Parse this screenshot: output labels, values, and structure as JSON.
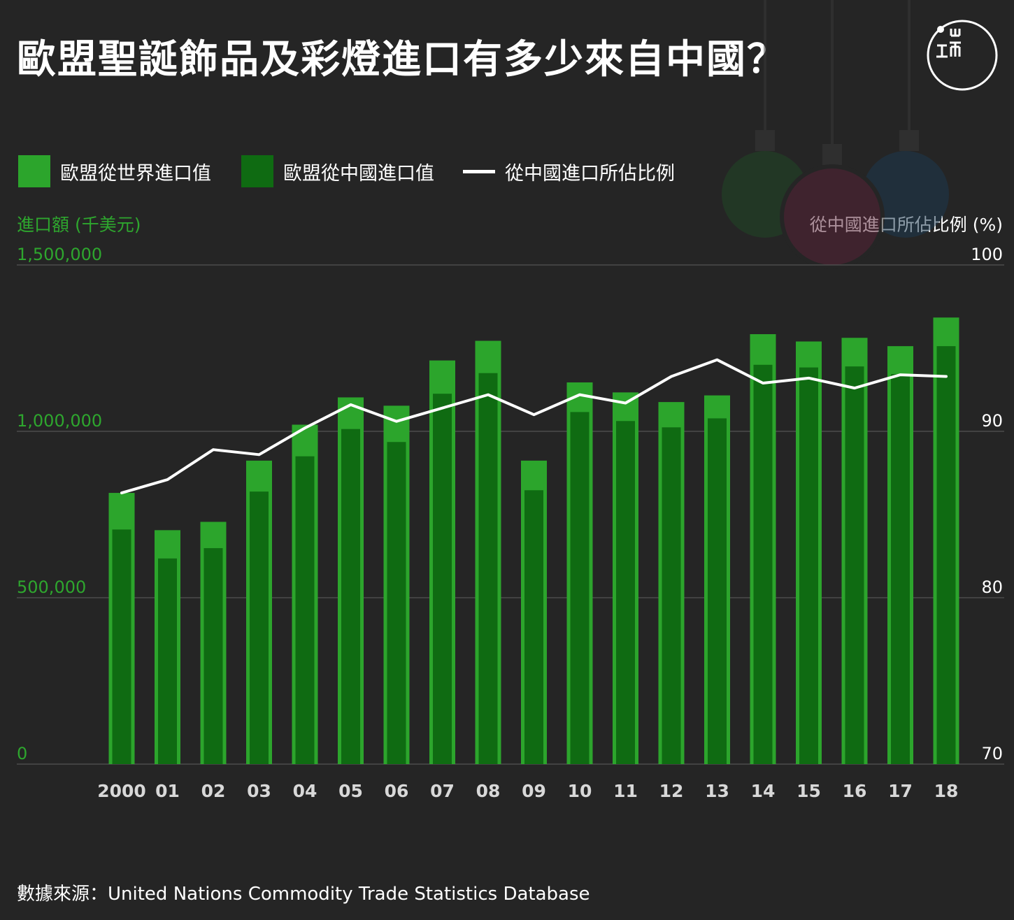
{
  "title": "歐盟聖誕飾品及彩燈進口有多少來自中國？",
  "logo": {
    "icon": "initium-logo-icon"
  },
  "legend": [
    {
      "label": "歐盟從世界進口值",
      "color": "#2ca52c",
      "kind": "bar"
    },
    {
      "label": "歐盟從中國進口值",
      "color": "#0f6b12",
      "kind": "bar"
    },
    {
      "label": "從中國進口所佔比例",
      "color": "#ffffff",
      "kind": "line"
    }
  ],
  "source": "數據來源：United Nations Commodity Trade Statistics Database",
  "chart_data": {
    "type": "bar",
    "ylabel": "進口額 (千美元)",
    "y2label": "從中國進口所佔比例 (%)",
    "ylim": [
      0,
      1500000
    ],
    "y2lim": [
      70,
      100
    ],
    "yticks": [
      0,
      500000,
      1000000,
      1500000
    ],
    "ytick_labels": [
      "0",
      "500,000",
      "1,000,000",
      "1,500,000"
    ],
    "y2ticks": [
      70,
      80,
      90,
      100
    ],
    "y2tick_labels": [
      "70",
      "80",
      "90",
      "100"
    ],
    "grid": true,
    "legend_position": "top-left",
    "colors": {
      "world": "#2ca52c",
      "china": "#0f6b12",
      "share": "#ffffff",
      "left_axis_text": "#2ea62e",
      "right_axis_text": "#ffffff",
      "x_axis_text": "#d8d8d8"
    },
    "categories": [
      "2000",
      "01",
      "02",
      "03",
      "04",
      "05",
      "06",
      "07",
      "08",
      "09",
      "10",
      "11",
      "12",
      "13",
      "14",
      "15",
      "16",
      "17",
      "18"
    ],
    "series": [
      {
        "name": "歐盟從世界進口值",
        "type": "bar",
        "values": [
          815000,
          703000,
          728000,
          912000,
          1020000,
          1102000,
          1077000,
          1213000,
          1272000,
          912000,
          1147000,
          1117000,
          1088000,
          1108000,
          1292000,
          1270000,
          1281000,
          1256000,
          1342000
        ]
      },
      {
        "name": "歐盟從中國進口值",
        "type": "bar",
        "values": [
          705000,
          618000,
          649000,
          819000,
          925000,
          1007000,
          968000,
          1113000,
          1175000,
          823000,
          1058000,
          1031000,
          1012000,
          1039000,
          1200000,
          1192000,
          1195000,
          1172000,
          1256000
        ]
      },
      {
        "name": "從中國進口所佔比例",
        "type": "line",
        "axis": "right",
        "values": [
          86.3,
          87.1,
          88.9,
          88.6,
          90.2,
          91.6,
          90.6,
          91.4,
          92.2,
          91.0,
          92.2,
          91.7,
          93.3,
          94.3,
          92.9,
          93.2,
          92.6,
          93.4,
          93.3
        ]
      }
    ]
  }
}
